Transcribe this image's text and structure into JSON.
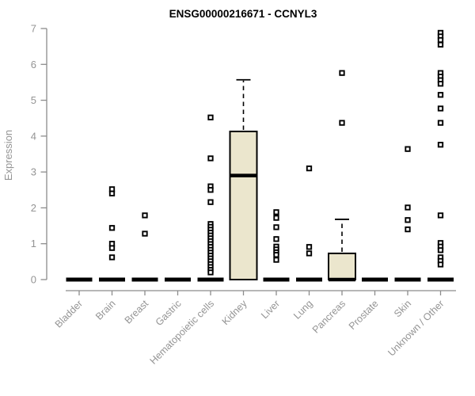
{
  "chart_data": {
    "type": "boxplot",
    "title": "ENSG00000216671 - CCNYL3",
    "xlabel": "",
    "ylabel": "Expression",
    "ylim": [
      0,
      7
    ],
    "yticks": [
      0,
      1,
      2,
      3,
      4,
      5,
      6,
      7
    ],
    "grid": false,
    "legend": "none",
    "categories": [
      "Bladder",
      "Brain",
      "Breast",
      "Gastric",
      "Hematopoietic cells",
      "Kidney",
      "Liver",
      "Lung",
      "Pancreas",
      "Prostate",
      "Skin",
      "Unknown / Other"
    ],
    "boxes": [
      {
        "category": "Bladder",
        "q1": 0,
        "median": 0,
        "q3": 0,
        "whisker_low": 0,
        "whisker_high": 0,
        "outliers": []
      },
      {
        "category": "Brain",
        "q1": 0,
        "median": 0,
        "q3": 0,
        "whisker_low": 0,
        "whisker_high": 0,
        "outliers": [
          2.52,
          2.4,
          1.44,
          1.0,
          0.88,
          0.62
        ]
      },
      {
        "category": "Breast",
        "q1": 0,
        "median": 0,
        "q3": 0,
        "whisker_low": 0,
        "whisker_high": 0,
        "outliers": [
          1.79,
          1.28
        ]
      },
      {
        "category": "Gastric",
        "q1": 0,
        "median": 0,
        "q3": 0,
        "whisker_low": 0,
        "whisker_high": 0,
        "outliers": []
      },
      {
        "category": "Hematopoietic cells",
        "q1": 0,
        "median": 0,
        "q3": 0,
        "whisker_low": 0,
        "whisker_high": 0,
        "outliers": [
          4.52,
          3.38,
          2.6,
          2.5,
          2.16,
          1.55,
          1.47,
          1.39,
          1.31,
          1.23,
          1.15,
          1.07,
          0.99,
          0.91,
          0.83,
          0.75,
          0.67,
          0.59,
          0.51,
          0.43,
          0.35,
          0.27,
          0.2
        ]
      },
      {
        "category": "Kidney",
        "q1": 0,
        "median": 2.9,
        "q3": 4.13,
        "whisker_low": 0,
        "whisker_high": 5.57,
        "outliers": []
      },
      {
        "category": "Liver",
        "q1": 0,
        "median": 0,
        "q3": 0,
        "whisker_low": 0,
        "whisker_high": 0,
        "outliers": [
          1.88,
          1.72,
          1.46,
          1.13,
          0.92,
          0.84,
          0.76,
          0.69,
          0.55
        ]
      },
      {
        "category": "Lung",
        "q1": 0,
        "median": 0,
        "q3": 0,
        "whisker_low": 0,
        "whisker_high": 0,
        "outliers": [
          3.1,
          0.91,
          0.73
        ]
      },
      {
        "category": "Pancreas",
        "q1": 0,
        "median": 0,
        "q3": 0.73,
        "whisker_low": 0,
        "whisker_high": 1.68,
        "outliers": [
          5.76,
          4.37
        ]
      },
      {
        "category": "Prostate",
        "q1": 0,
        "median": 0,
        "q3": 0,
        "whisker_low": 0,
        "whisker_high": 0,
        "outliers": []
      },
      {
        "category": "Skin",
        "q1": 0,
        "median": 0,
        "q3": 0,
        "whisker_low": 0,
        "whisker_high": 0,
        "outliers": [
          3.64,
          2.01,
          1.66,
          1.4
        ]
      },
      {
        "category": "Unknown / Other",
        "q1": 0,
        "median": 0,
        "q3": 0,
        "whisker_low": 0,
        "whisker_high": 0,
        "outliers": [
          6.88,
          6.78,
          6.68,
          6.55,
          5.76,
          5.66,
          5.56,
          5.46,
          5.15,
          4.77,
          4.37,
          3.76,
          1.79,
          1.02,
          0.92,
          0.82,
          0.62,
          0.52,
          0.42
        ]
      }
    ],
    "colors": {
      "box_fill": "#EBE6CD",
      "box_border": "#000000",
      "median": "#000000",
      "outlier": "#000000",
      "flat_box": "#000000",
      "axis": "#8C8C8C",
      "tick_label": "#949494",
      "title": "#000000",
      "background": "#FFFFFF"
    }
  }
}
